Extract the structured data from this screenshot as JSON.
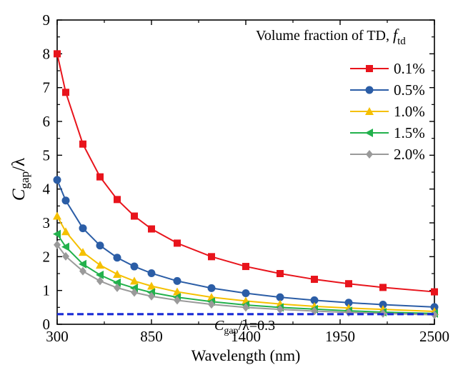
{
  "chart_data": {
    "type": "line",
    "xlabel": "Wavelength (nm)",
    "ylabel": {
      "main": "C",
      "sub": "gap",
      "tail": "/λ"
    },
    "xlim": [
      300,
      2500
    ],
    "ylim": [
      0,
      9
    ],
    "xticks": [
      300,
      850,
      1400,
      1950,
      2500
    ],
    "yticks": [
      0,
      1,
      2,
      3,
      4,
      5,
      6,
      7,
      8,
      9
    ],
    "grid": false,
    "legend": {
      "placement": "top-right",
      "title": {
        "text": "Volume fraction of TD, ",
        "italic": "f",
        "sub": "td"
      }
    },
    "series": [
      {
        "name": "0.1%",
        "color": "#e8141c",
        "marker": "square",
        "x": [
          300,
          350,
          450,
          550,
          650,
          750,
          850,
          1000,
          1200,
          1400,
          1600,
          1800,
          2000,
          2200,
          2500
        ],
        "values": [
          8.0,
          6.86,
          5.33,
          4.36,
          3.69,
          3.2,
          2.82,
          2.4,
          2.0,
          1.71,
          1.5,
          1.33,
          1.2,
          1.09,
          0.96
        ]
      },
      {
        "name": "0.5%",
        "color": "#2b5da6",
        "marker": "circle",
        "x": [
          300,
          350,
          450,
          550,
          650,
          750,
          850,
          1000,
          1200,
          1400,
          1600,
          1800,
          2000,
          2200,
          2500
        ],
        "values": [
          4.27,
          3.66,
          2.84,
          2.33,
          1.97,
          1.71,
          1.51,
          1.28,
          1.07,
          0.92,
          0.8,
          0.71,
          0.64,
          0.58,
          0.51
        ]
      },
      {
        "name": "1.0%",
        "color": "#f5c000",
        "marker": "triangle-up",
        "x": [
          300,
          350,
          450,
          550,
          650,
          750,
          850,
          1000,
          1200,
          1400,
          1600,
          1800,
          2000,
          2200,
          2500
        ],
        "values": [
          3.2,
          2.74,
          2.13,
          1.75,
          1.48,
          1.28,
          1.13,
          0.96,
          0.8,
          0.69,
          0.6,
          0.53,
          0.48,
          0.44,
          0.38
        ]
      },
      {
        "name": "1.5%",
        "color": "#22b14c",
        "marker": "triangle-left",
        "x": [
          300,
          350,
          450,
          550,
          650,
          750,
          850,
          1000,
          1200,
          1400,
          1600,
          1800,
          2000,
          2200,
          2500
        ],
        "values": [
          2.67,
          2.29,
          1.78,
          1.46,
          1.23,
          1.07,
          0.94,
          0.8,
          0.67,
          0.57,
          0.5,
          0.45,
          0.4,
          0.36,
          0.32
        ]
      },
      {
        "name": "2.0%",
        "color": "#9a9a9a",
        "marker": "diamond",
        "x": [
          300,
          350,
          450,
          550,
          650,
          750,
          850,
          1000,
          1200,
          1400,
          1600,
          1800,
          2000,
          2200,
          2500
        ],
        "values": [
          2.35,
          2.01,
          1.57,
          1.28,
          1.08,
          0.94,
          0.83,
          0.71,
          0.59,
          0.5,
          0.44,
          0.39,
          0.35,
          0.32,
          0.28
        ]
      }
    ],
    "reference_line": {
      "y": 0.3,
      "color": "#1a2bd6",
      "style": "dashed",
      "label": {
        "main": "C",
        "sub": "gap",
        "tail": "/λ=0.3"
      }
    }
  }
}
